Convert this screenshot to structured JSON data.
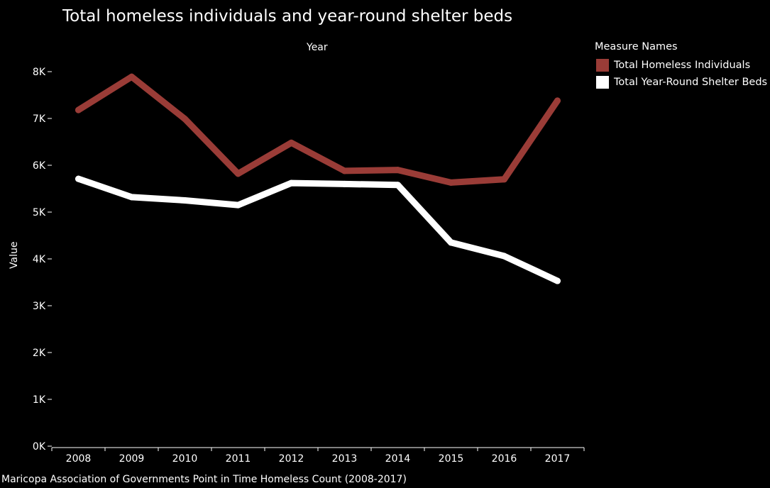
{
  "chart_data": {
    "type": "line",
    "title": "Total homeless individuals and year-round shelter beds",
    "xlabel": "Year",
    "ylabel": "Value",
    "categories": [
      "2008",
      "2009",
      "2010",
      "2011",
      "2012",
      "2013",
      "2014",
      "2015",
      "2016",
      "2017"
    ],
    "y_ticks": [
      "0K",
      "1K",
      "2K",
      "3K",
      "4K",
      "5K",
      "6K",
      "7K",
      "8K"
    ],
    "ylim": [
      0,
      8000
    ],
    "grid": false,
    "legend_position": "top-right",
    "legend_title": "Measure Names",
    "series": [
      {
        "name": "Total Homeless Individuals",
        "color": "#9a3c37",
        "values": [
          7180,
          7890,
          6990,
          5820,
          6480,
          5880,
          5900,
          5630,
          5700,
          7380
        ]
      },
      {
        "name": "Total Year-Round Shelter Beds",
        "color": "#ffffff",
        "values": [
          5710,
          5320,
          5250,
          5150,
          5620,
          5600,
          5580,
          4350,
          4060,
          3530
        ]
      }
    ],
    "source": "Maricopa Association of Governments Point in Time Homeless Count (2008-2017)"
  }
}
